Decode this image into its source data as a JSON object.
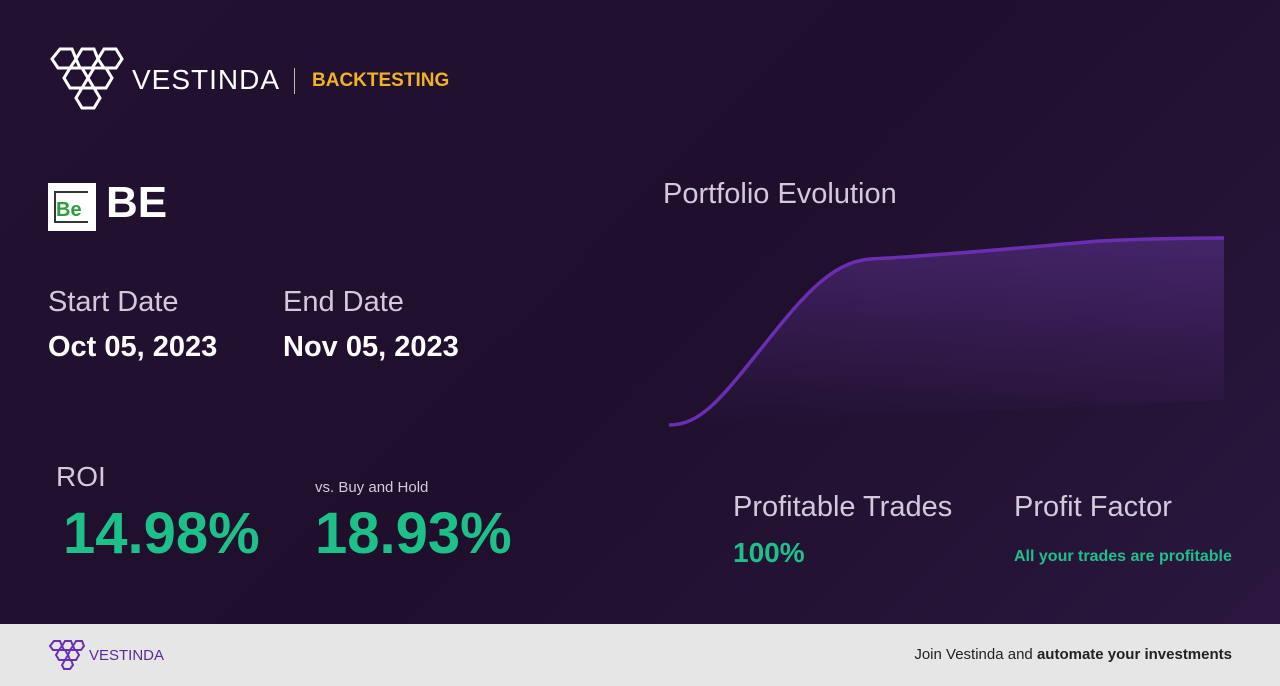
{
  "header": {
    "brand": "VESTINDA",
    "section": "BACKTESTING"
  },
  "ticker": {
    "logo_text": "Be",
    "symbol": "BE"
  },
  "dates": {
    "start_label": "Start Date",
    "start_value": "Oct 05, 2023",
    "end_label": "End Date",
    "end_value": "Nov 05, 2023"
  },
  "roi": {
    "label": "ROI",
    "value": "14.98%",
    "compare_label": "vs. Buy and Hold",
    "compare_value": "18.93%"
  },
  "chart": {
    "title": "Portfolio Evolution"
  },
  "stats": {
    "profitable_trades_label": "Profitable Trades",
    "profitable_trades_value": "100%",
    "profit_factor_label": "Profit Factor",
    "profit_factor_value": "All your trades are profitable"
  },
  "footer": {
    "brand": "VESTINDA",
    "cta_prefix": "Join Vestinda and",
    "cta_bold": "automate your investments"
  }
}
